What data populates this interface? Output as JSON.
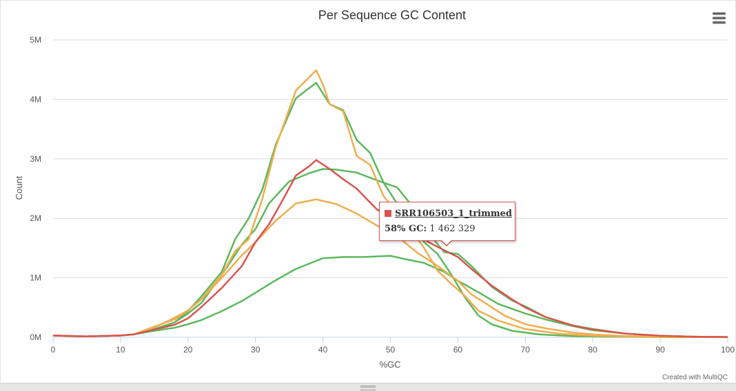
{
  "chart_data": {
    "type": "line",
    "title": "Per Sequence GC Content",
    "xlabel": "%GC",
    "ylabel": "Count",
    "xlim": [
      0,
      100
    ],
    "ylim": [
      0,
      5000000
    ],
    "grid": true,
    "x_ticks": [
      0,
      10,
      20,
      30,
      40,
      50,
      60,
      70,
      80,
      90,
      100
    ],
    "y_ticks": [
      {
        "value": 0,
        "label": "0M"
      },
      {
        "value": 1000000,
        "label": "1M"
      },
      {
        "value": 2000000,
        "label": "2M"
      },
      {
        "value": 3000000,
        "label": "3M"
      },
      {
        "value": 4000000,
        "label": "4M"
      },
      {
        "value": 5000000,
        "label": "5M"
      }
    ],
    "series": [
      {
        "name": "",
        "color": "#5cb85c",
        "points": [
          [
            0,
            30000
          ],
          [
            5,
            15000
          ],
          [
            10,
            30000
          ],
          [
            12,
            50000
          ],
          [
            15,
            110000
          ],
          [
            18,
            160000
          ],
          [
            20,
            220000
          ],
          [
            22,
            290000
          ],
          [
            25,
            440000
          ],
          [
            28,
            610000
          ],
          [
            31,
            820000
          ],
          [
            33,
            960000
          ],
          [
            36,
            1150000
          ],
          [
            40,
            1330000
          ],
          [
            43,
            1350000
          ],
          [
            46,
            1350000
          ],
          [
            50,
            1370000
          ],
          [
            52,
            1320000
          ],
          [
            55,
            1250000
          ],
          [
            58,
            1100000
          ],
          [
            60,
            950000
          ],
          [
            63,
            760000
          ],
          [
            66,
            560000
          ],
          [
            70,
            400000
          ],
          [
            73,
            300000
          ],
          [
            77,
            190000
          ],
          [
            80,
            120000
          ],
          [
            85,
            60000
          ],
          [
            90,
            25000
          ],
          [
            95,
            10000
          ],
          [
            100,
            5000
          ]
        ]
      },
      {
        "name": "",
        "color": "#5cb85c",
        "points": [
          [
            0,
            30000
          ],
          [
            5,
            15000
          ],
          [
            10,
            30000
          ],
          [
            12,
            50000
          ],
          [
            15,
            140000
          ],
          [
            18,
            250000
          ],
          [
            20,
            400000
          ],
          [
            22,
            580000
          ],
          [
            25,
            1050000
          ],
          [
            28,
            1560000
          ],
          [
            30,
            1820000
          ],
          [
            32,
            2250000
          ],
          [
            35,
            2620000
          ],
          [
            38,
            2760000
          ],
          [
            40,
            2830000
          ],
          [
            42,
            2820000
          ],
          [
            45,
            2770000
          ],
          [
            48,
            2640000
          ],
          [
            51,
            2520000
          ],
          [
            54,
            2100000
          ],
          [
            56,
            1700000
          ],
          [
            58,
            1430000
          ],
          [
            60,
            1400000
          ],
          [
            62,
            1200000
          ],
          [
            65,
            850000
          ],
          [
            68,
            620000
          ],
          [
            70,
            520000
          ],
          [
            73,
            340000
          ],
          [
            77,
            200000
          ],
          [
            80,
            140000
          ],
          [
            85,
            60000
          ],
          [
            90,
            25000
          ],
          [
            95,
            10000
          ],
          [
            100,
            5000
          ]
        ]
      },
      {
        "name": "",
        "color": "#5cb85c",
        "points": [
          [
            0,
            30000
          ],
          [
            5,
            15000
          ],
          [
            10,
            30000
          ],
          [
            12,
            50000
          ],
          [
            15,
            130000
          ],
          [
            18,
            250000
          ],
          [
            20,
            440000
          ],
          [
            22,
            690000
          ],
          [
            25,
            1100000
          ],
          [
            27,
            1650000
          ],
          [
            29,
            2000000
          ],
          [
            31,
            2480000
          ],
          [
            33,
            3240000
          ],
          [
            36,
            4020000
          ],
          [
            39,
            4280000
          ],
          [
            41,
            3920000
          ],
          [
            43,
            3820000
          ],
          [
            45,
            3320000
          ],
          [
            47,
            3100000
          ],
          [
            49,
            2600000
          ],
          [
            52,
            2070000
          ],
          [
            55,
            1600000
          ],
          [
            57,
            1400000
          ],
          [
            59,
            1060000
          ],
          [
            61,
            680000
          ],
          [
            63,
            370000
          ],
          [
            65,
            220000
          ],
          [
            68,
            110000
          ],
          [
            72,
            50000
          ],
          [
            77,
            20000
          ],
          [
            82,
            10000
          ],
          [
            90,
            5000
          ],
          [
            100,
            2000
          ]
        ]
      },
      {
        "name": "",
        "color": "#f0ad4e",
        "points": [
          [
            0,
            30000
          ],
          [
            5,
            15000
          ],
          [
            10,
            30000
          ],
          [
            12,
            50000
          ],
          [
            15,
            180000
          ],
          [
            18,
            300000
          ],
          [
            20,
            450000
          ],
          [
            22,
            640000
          ],
          [
            25,
            1000000
          ],
          [
            28,
            1380000
          ],
          [
            30,
            1600000
          ],
          [
            33,
            1960000
          ],
          [
            36,
            2250000
          ],
          [
            39,
            2320000
          ],
          [
            42,
            2240000
          ],
          [
            45,
            2080000
          ],
          [
            48,
            1880000
          ],
          [
            51,
            1700000
          ],
          [
            54,
            1420000
          ],
          [
            57,
            1200000
          ],
          [
            60,
            950000
          ],
          [
            62,
            720000
          ],
          [
            64,
            580000
          ],
          [
            67,
            360000
          ],
          [
            70,
            220000
          ],
          [
            73,
            150000
          ],
          [
            77,
            80000
          ],
          [
            80,
            50000
          ],
          [
            85,
            20000
          ],
          [
            90,
            10000
          ],
          [
            100,
            5000
          ]
        ]
      },
      {
        "name": "",
        "color": "#f0ad4e",
        "points": [
          [
            0,
            30000
          ],
          [
            5,
            15000
          ],
          [
            10,
            30000
          ],
          [
            12,
            50000
          ],
          [
            15,
            170000
          ],
          [
            17,
            270000
          ],
          [
            20,
            450000
          ],
          [
            22,
            640000
          ],
          [
            25,
            1050000
          ],
          [
            27,
            1450000
          ],
          [
            29,
            1650000
          ],
          [
            31,
            2320000
          ],
          [
            33,
            3200000
          ],
          [
            36,
            4150000
          ],
          [
            39,
            4490000
          ],
          [
            40,
            4250000
          ],
          [
            41,
            3920000
          ],
          [
            43,
            3800000
          ],
          [
            45,
            3050000
          ],
          [
            47,
            2900000
          ],
          [
            49,
            2370000
          ],
          [
            52,
            1970000
          ],
          [
            55,
            1500000
          ],
          [
            57,
            1120000
          ],
          [
            59,
            900000
          ],
          [
            61,
            700000
          ],
          [
            63,
            450000
          ],
          [
            66,
            280000
          ],
          [
            70,
            140000
          ],
          [
            75,
            60000
          ],
          [
            80,
            25000
          ],
          [
            90,
            5000
          ],
          [
            100,
            2000
          ]
        ]
      },
      {
        "name": "SRR106503_1_trimmed",
        "color": "#d9534f",
        "points": [
          [
            0,
            30000
          ],
          [
            5,
            15000
          ],
          [
            10,
            30000
          ],
          [
            12,
            50000
          ],
          [
            15,
            130000
          ],
          [
            18,
            210000
          ],
          [
            20,
            320000
          ],
          [
            22,
            510000
          ],
          [
            25,
            830000
          ],
          [
            28,
            1200000
          ],
          [
            30,
            1600000
          ],
          [
            32,
            1900000
          ],
          [
            34,
            2300000
          ],
          [
            36,
            2720000
          ],
          [
            38,
            2880000
          ],
          [
            39,
            2980000
          ],
          [
            41,
            2830000
          ],
          [
            43,
            2660000
          ],
          [
            45,
            2500000
          ],
          [
            48,
            2150000
          ],
          [
            50,
            2000000
          ],
          [
            53,
            1770000
          ],
          [
            56,
            1580000
          ],
          [
            58,
            1462329
          ],
          [
            60,
            1350000
          ],
          [
            62,
            1150000
          ],
          [
            65,
            870000
          ],
          [
            68,
            640000
          ],
          [
            70,
            500000
          ],
          [
            73,
            340000
          ],
          [
            77,
            200000
          ],
          [
            80,
            130000
          ],
          [
            85,
            60000
          ],
          [
            90,
            25000
          ],
          [
            95,
            10000
          ],
          [
            100,
            5000
          ]
        ]
      }
    ]
  },
  "tooltip": {
    "series": "SRR106503_1_trimmed",
    "x_label": "58% GC:",
    "value": "1 462 329",
    "color": "#d9534f"
  },
  "credit": "Created with MultiQC",
  "menu_icon": "hamburger-menu-icon"
}
